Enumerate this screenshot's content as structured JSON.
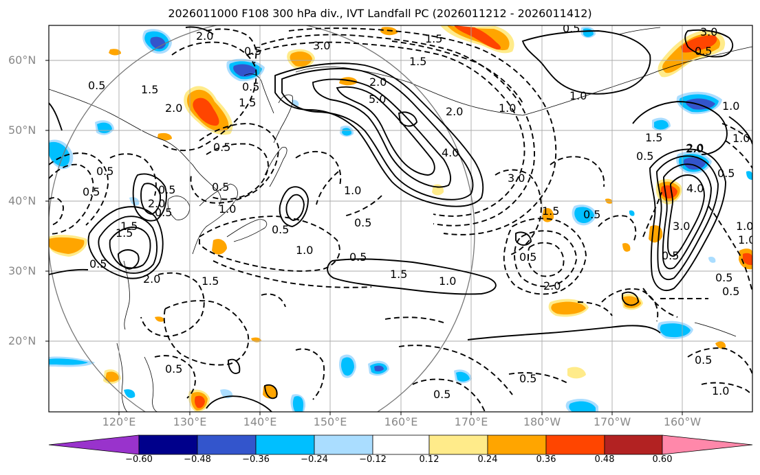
{
  "title": "2026011000 F108 300 hPa div., IVT Landfall PC (2026011212 - 2026011412)",
  "lat_labels": [
    "60°N",
    "50°N",
    "40°N",
    "30°N",
    "20°N"
  ],
  "lon_labels": [
    "120°E",
    "130°E",
    "140°E",
    "150°E",
    "160°E",
    "170°E",
    "180°W",
    "170°W",
    "160°W"
  ],
  "colorbar": {
    "colors": [
      "#9933cc",
      "#00008b",
      "#3355cc",
      "#00bfff",
      "#aaddff",
      "#ffffff",
      "#ffeb8a",
      "#ffa500",
      "#ff4500",
      "#b22222",
      "#ff88aa"
    ],
    "labels": [
      "−0.60",
      "−0.48",
      "−0.36",
      "−0.24",
      "−0.12",
      "0.12",
      "0.24",
      "0.36",
      "0.48",
      "0.60"
    ]
  },
  "contour_labels": [
    "2.0",
    "1.5",
    "0.5",
    "3.0",
    "3.0",
    "0.5",
    "1.5",
    "0.5",
    "2.0",
    "0.5",
    "1.5",
    "2.0",
    "1.0",
    "0.5",
    "5.0",
    "1.0",
    "0.5",
    "0.5",
    "1.0",
    "2.0",
    "4.0",
    "3.0",
    "1.0",
    "1.5",
    "1.0",
    "1.0",
    "0.5",
    "1.5",
    "0.5",
    "1.5",
    "0.5",
    "2.0",
    "1.0",
    "2.0",
    "0.5",
    "0.5",
    "0.5",
    "1.0",
    "0.5",
    "1.5",
    "1.0",
    "0.5",
    "1.5",
    "0.5",
    "2.0",
    "0.5",
    "0.5",
    "0.5",
    "1.5",
    "0.5",
    "2.0",
    "4.0",
    "3.0",
    "0.5",
    "1.0",
    "0.5",
    "2.0",
    "0.5",
    "0.5",
    "0.5",
    "0.5",
    "1.0",
    "1.5"
  ]
}
